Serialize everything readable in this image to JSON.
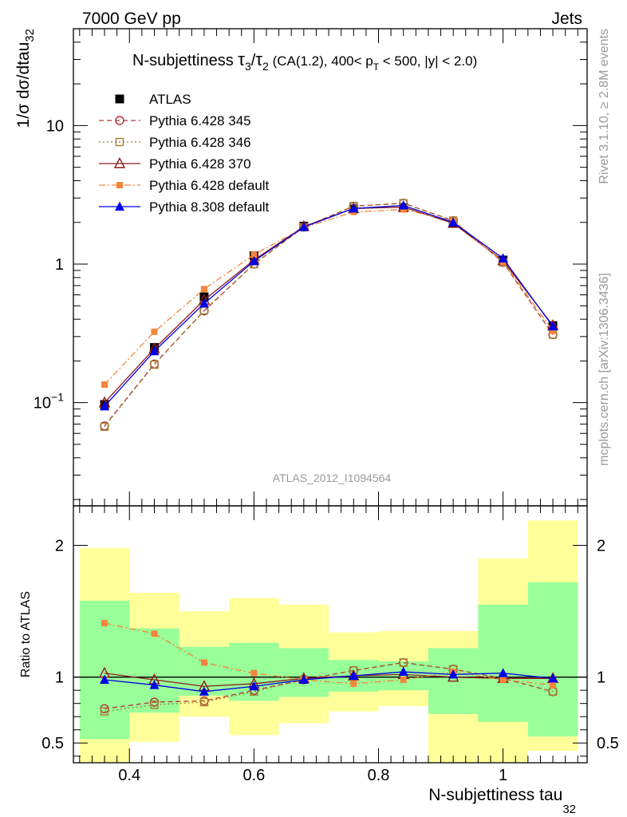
{
  "header": {
    "left": "7000 GeV pp",
    "right": "Jets"
  },
  "title": {
    "prefix": "N-subjettiness ",
    "tau": "τ",
    "sub3": "3",
    "slash": "/",
    "sub2": "2",
    "cuts_a": " (CA(1.2), 400< p",
    "sub_T": "T",
    "cuts_b": " < 500, |y| < 2.0)"
  },
  "side_labels": {
    "rivet": "Rivet 3.1.10, ≥ 2.8M events",
    "mcplots": "mcplots.cern.ch [arXiv:1306.3436]"
  },
  "analysis_label": "ATLAS_2012_I1094564",
  "colors": {
    "atlas": "#000000",
    "py345": "#b2323c",
    "py346": "#a08032",
    "py370": "#8b1a1a",
    "pydefault": "#f5843c",
    "py8": "#0000e6",
    "band_inner": "#99ff99",
    "band_outer": "#ffff99"
  },
  "chart_data": [
    {
      "type": "line",
      "panel": "main",
      "ylabel_main": "1/σ dσ/dtau",
      "ylabel_sub": "32",
      "yscale": "log",
      "ylim": [
        0.018,
        50
      ],
      "xlim": [
        0.31,
        1.135
      ],
      "y_ticks": [
        {
          "value": 10,
          "label": "10",
          "exp": ""
        },
        {
          "value": 1,
          "label": "1",
          "exp": ""
        },
        {
          "value": 0.1,
          "label": "10",
          "exp": "−1"
        }
      ],
      "x": [
        0.36,
        0.44,
        0.52,
        0.6,
        0.68,
        0.76,
        0.84,
        0.92,
        1.0,
        1.08
      ],
      "legend_position": "top-left",
      "series": [
        {
          "name": "ATLAS",
          "key": "atlas",
          "marker": "square-filled",
          "line": "none",
          "values": [
            0.097,
            0.25,
            0.58,
            1.15,
            1.88,
            2.5,
            2.55,
            1.97,
            1.07,
            0.36
          ]
        },
        {
          "name": "Pythia 6.428 345",
          "key": "py345",
          "marker": "circle-open",
          "line": "dashed",
          "values": [
            0.068,
            0.19,
            0.46,
            1.0,
            1.85,
            2.62,
            2.75,
            2.06,
            1.03,
            0.31
          ]
        },
        {
          "name": "Pythia 6.428 346",
          "key": "py346",
          "marker": "square-open",
          "line": "dotted",
          "values": [
            0.067,
            0.188,
            0.465,
            1.0,
            1.85,
            2.62,
            2.75,
            2.06,
            1.03,
            0.31
          ]
        },
        {
          "name": "Pythia 6.428 370",
          "key": "py370",
          "marker": "triangle-open",
          "line": "solid",
          "values": [
            0.1,
            0.245,
            0.55,
            1.07,
            1.87,
            2.52,
            2.58,
            1.97,
            1.06,
            0.36
          ]
        },
        {
          "name": "Pythia 6.428 default",
          "key": "pydefault",
          "marker": "square-filled-small",
          "line": "dashdot",
          "values": [
            0.135,
            0.325,
            0.66,
            1.17,
            1.83,
            2.38,
            2.48,
            2.05,
            1.04,
            0.33
          ]
        },
        {
          "name": "Pythia 8.308 default",
          "key": "py8",
          "marker": "triangle-filled",
          "line": "solid",
          "values": [
            0.094,
            0.235,
            0.52,
            1.05,
            1.85,
            2.52,
            2.65,
            2.0,
            1.1,
            0.355
          ]
        }
      ]
    },
    {
      "type": "line",
      "panel": "ratio",
      "ylabel": "Ratio to ATLAS",
      "xlabel": "N-subjettiness tau",
      "xlabel_sub": "32",
      "ylim": [
        0.35,
        2.3
      ],
      "y_ticks": [
        {
          "value": 2,
          "label": "2"
        },
        {
          "value": 1,
          "label": "1"
        },
        {
          "value": 0.5,
          "label": "0.5"
        }
      ],
      "x_ticks": [
        {
          "value": 0.4,
          "label": "0.4"
        },
        {
          "value": 0.6,
          "label": "0.6"
        },
        {
          "value": 0.8,
          "label": "0.8"
        },
        {
          "value": 1.0,
          "label": "1"
        }
      ],
      "bin_edges": [
        0.32,
        0.4,
        0.48,
        0.56,
        0.64,
        0.72,
        0.8,
        0.88,
        0.96,
        1.04,
        1.12
      ],
      "band_inner": [
        [
          0.53,
          1.58
        ],
        [
          0.73,
          1.37
        ],
        [
          0.86,
          1.23
        ],
        [
          0.82,
          1.26
        ],
        [
          0.85,
          1.22
        ],
        [
          0.89,
          1.13
        ],
        [
          0.9,
          1.12
        ],
        [
          0.72,
          1.22
        ],
        [
          0.66,
          1.55
        ],
        [
          0.55,
          1.72
        ]
      ],
      "band_outer": [
        [
          0.35,
          1.98
        ],
        [
          0.51,
          1.64
        ],
        [
          0.7,
          1.5
        ],
        [
          0.56,
          1.6
        ],
        [
          0.65,
          1.55
        ],
        [
          0.74,
          1.34
        ],
        [
          0.78,
          1.35
        ],
        [
          0.35,
          1.35
        ],
        [
          0.35,
          1.9
        ],
        [
          0.44,
          2.19
        ]
      ],
      "x": [
        0.36,
        0.44,
        0.52,
        0.6,
        0.68,
        0.76,
        0.84,
        0.92,
        1.0,
        1.08
      ],
      "series": [
        {
          "name": "Pythia 6.428 345",
          "key": "py345",
          "marker": "circle-open",
          "line": "dashed",
          "values": [
            0.76,
            0.81,
            0.82,
            0.9,
            0.98,
            1.05,
            1.11,
            1.06,
            0.99,
            0.89
          ]
        },
        {
          "name": "Pythia 6.428 346",
          "key": "py346",
          "marker": "square-open",
          "line": "dotted",
          "values": [
            0.74,
            0.79,
            0.81,
            0.89,
            0.98,
            1.05,
            1.11,
            1.06,
            0.99,
            0.89
          ]
        },
        {
          "name": "Pythia 6.428 370",
          "key": "py370",
          "marker": "triangle-open",
          "line": "solid",
          "values": [
            1.03,
            0.98,
            0.93,
            0.95,
            0.99,
            1.01,
            1.02,
            1.0,
            0.99,
            0.99
          ]
        },
        {
          "name": "Pythia 6.428 default",
          "key": "pydefault",
          "marker": "square-filled-small",
          "line": "dashdot",
          "values": [
            1.41,
            1.33,
            1.11,
            1.03,
            0.98,
            0.95,
            0.98,
            1.04,
            0.98,
            0.94
          ]
        },
        {
          "name": "Pythia 8.308 default",
          "key": "py8",
          "marker": "triangle-filled",
          "line": "solid",
          "values": [
            0.98,
            0.94,
            0.89,
            0.93,
            0.98,
            1.01,
            1.04,
            1.02,
            1.03,
            0.99
          ]
        }
      ]
    }
  ]
}
